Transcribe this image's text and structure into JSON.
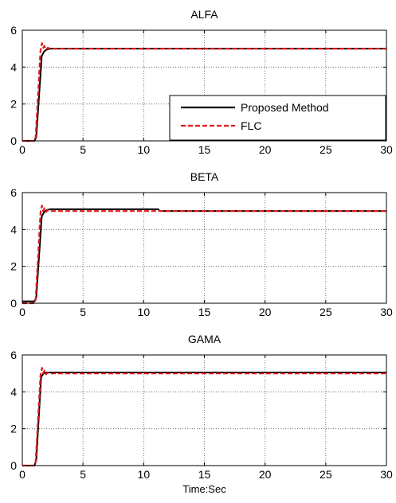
{
  "chart_data": [
    {
      "type": "line",
      "title": "ALFA",
      "xlabel": "",
      "ylabel": "",
      "xlim": [
        0,
        30
      ],
      "ylim": [
        0,
        6
      ],
      "xticks": [
        0,
        5,
        10,
        15,
        20,
        25,
        30
      ],
      "yticks": [
        0,
        2,
        4,
        6
      ],
      "grid": true,
      "legend": {
        "placement": "bottom-right",
        "entries": [
          "Proposed Method",
          "FLC"
        ]
      },
      "series": [
        {
          "name": "Proposed Method",
          "color": "#000000",
          "style": "solid",
          "x": [
            0,
            1.0,
            1.15,
            1.6,
            1.8,
            2.0,
            2.3,
            30
          ],
          "y": [
            0.0,
            0.0,
            0.2,
            4.6,
            4.85,
            4.95,
            5.0,
            5.0
          ]
        },
        {
          "name": "FLC",
          "color": "#e31a1c",
          "style": "dashed",
          "x": [
            0,
            1.0,
            1.1,
            1.5,
            1.62,
            1.72,
            1.82,
            1.95,
            2.1,
            2.3,
            30
          ],
          "y": [
            0.0,
            0.0,
            0.2,
            4.9,
            5.3,
            5.05,
            5.15,
            4.95,
            5.05,
            5.0,
            5.0
          ]
        }
      ]
    },
    {
      "type": "line",
      "title": "BETA",
      "xlabel": "",
      "ylabel": "",
      "xlim": [
        0,
        30
      ],
      "ylim": [
        0,
        6
      ],
      "xticks": [
        0,
        5,
        10,
        15,
        20,
        25,
        30
      ],
      "yticks": [
        0,
        2,
        4,
        6
      ],
      "grid": true,
      "series": [
        {
          "name": "Proposed Method",
          "color": "#000000",
          "style": "solid",
          "x": [
            0,
            1.0,
            1.15,
            1.6,
            1.8,
            2.0,
            2.3,
            11.2,
            11.3,
            30
          ],
          "y": [
            0.1,
            0.1,
            0.3,
            4.7,
            4.95,
            5.05,
            5.1,
            5.1,
            5.0,
            5.0
          ]
        },
        {
          "name": "FLC",
          "color": "#e31a1c",
          "style": "dashed",
          "x": [
            0,
            1.0,
            1.1,
            1.5,
            1.62,
            1.72,
            1.82,
            1.95,
            2.1,
            2.3,
            30
          ],
          "y": [
            0.0,
            0.0,
            0.2,
            4.9,
            5.3,
            5.0,
            5.15,
            4.95,
            5.05,
            5.0,
            5.0
          ]
        }
      ]
    },
    {
      "type": "line",
      "title": "GAMA",
      "xlabel": "Time:Sec",
      "ylabel": "",
      "xlim": [
        0,
        30
      ],
      "ylim": [
        0,
        6
      ],
      "xticks": [
        0,
        5,
        10,
        15,
        20,
        25,
        30
      ],
      "yticks": [
        0,
        2,
        4,
        6
      ],
      "grid": true,
      "series": [
        {
          "name": "Proposed Method",
          "color": "#000000",
          "style": "solid",
          "x": [
            0,
            1.0,
            1.15,
            1.55,
            1.75,
            2.0,
            30
          ],
          "y": [
            0.0,
            0.0,
            0.3,
            4.8,
            5.0,
            5.05,
            5.05
          ]
        },
        {
          "name": "FLC",
          "color": "#e31a1c",
          "style": "dashed",
          "x": [
            0,
            1.0,
            1.1,
            1.5,
            1.62,
            1.72,
            1.82,
            1.95,
            2.1,
            2.3,
            30
          ],
          "y": [
            0.0,
            0.0,
            0.2,
            4.9,
            5.3,
            5.0,
            5.15,
            4.95,
            5.05,
            5.0,
            5.0
          ]
        }
      ]
    }
  ]
}
